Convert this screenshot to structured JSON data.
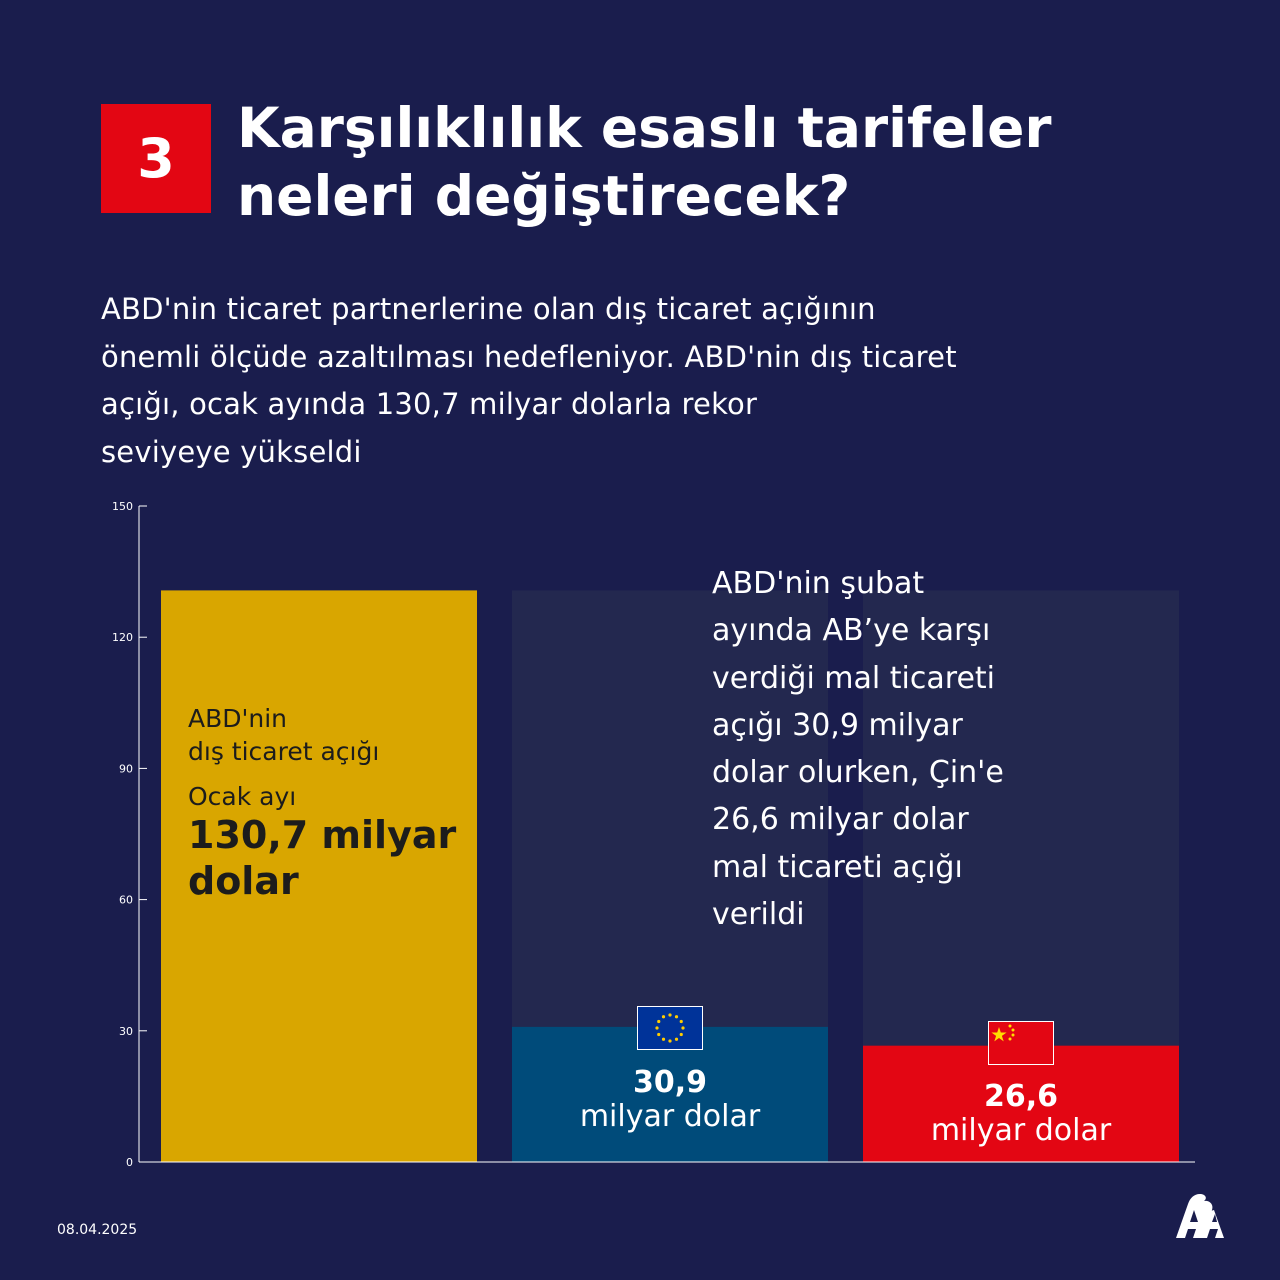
{
  "header": {
    "number": "3",
    "title_line1": "Karşılıklılık esaslı tarifeler",
    "title_line2": "neleri değiştirecek?",
    "subtitle_line1": "ABD'nin ticaret partnerlerine olan dış ticaret açığının",
    "subtitle_line2": "önemli ölçüde azaltılması hedefleniyor. ABD'nin dış ticaret",
    "subtitle_line3": "açığı, ocak ayında 130,7 milyar dolarla rekor",
    "subtitle_line4": "seviyeye yükseldi"
  },
  "chart_data": {
    "type": "bar",
    "categories": [
      "ABD",
      "AB",
      "Çin"
    ],
    "values": [
      130.7,
      30.9,
      26.6
    ],
    "ylim": [
      0,
      150
    ],
    "yticks": [
      0,
      30,
      60,
      90,
      120,
      150
    ],
    "xlabel": "",
    "ylabel": "",
    "colors": [
      "#d9a600",
      "#004b7a",
      "#e30613"
    ],
    "background_bar_value": 130.7,
    "background_bar_color": "#23284f",
    "grid": false
  },
  "bars": {
    "us_line1": "ABD'nin",
    "us_line2": "dış ticaret açığı",
    "us_month": "Ocak ayı",
    "us_value_line1": "130,7 milyar",
    "us_value_line2": "dolar",
    "eu_value": "30,9",
    "eu_unit": "milyar dolar",
    "cn_value": "26,6",
    "cn_unit": "milyar dolar"
  },
  "annotation": {
    "lines": [
      "ABD'nin şubat",
      "ayında AB’ye karşı",
      "verdiği mal ticareti",
      "açığı 30,9 milyar",
      "dolar olurken, Çin'e",
      "26,6 milyar dolar",
      "mal ticareti açığı",
      "verildi"
    ]
  },
  "footer": {
    "date": "08.04.2025"
  },
  "icons": {
    "eu": "eu-flag-icon",
    "cn": "china-flag-icon",
    "logo": "aa-logo-icon"
  }
}
